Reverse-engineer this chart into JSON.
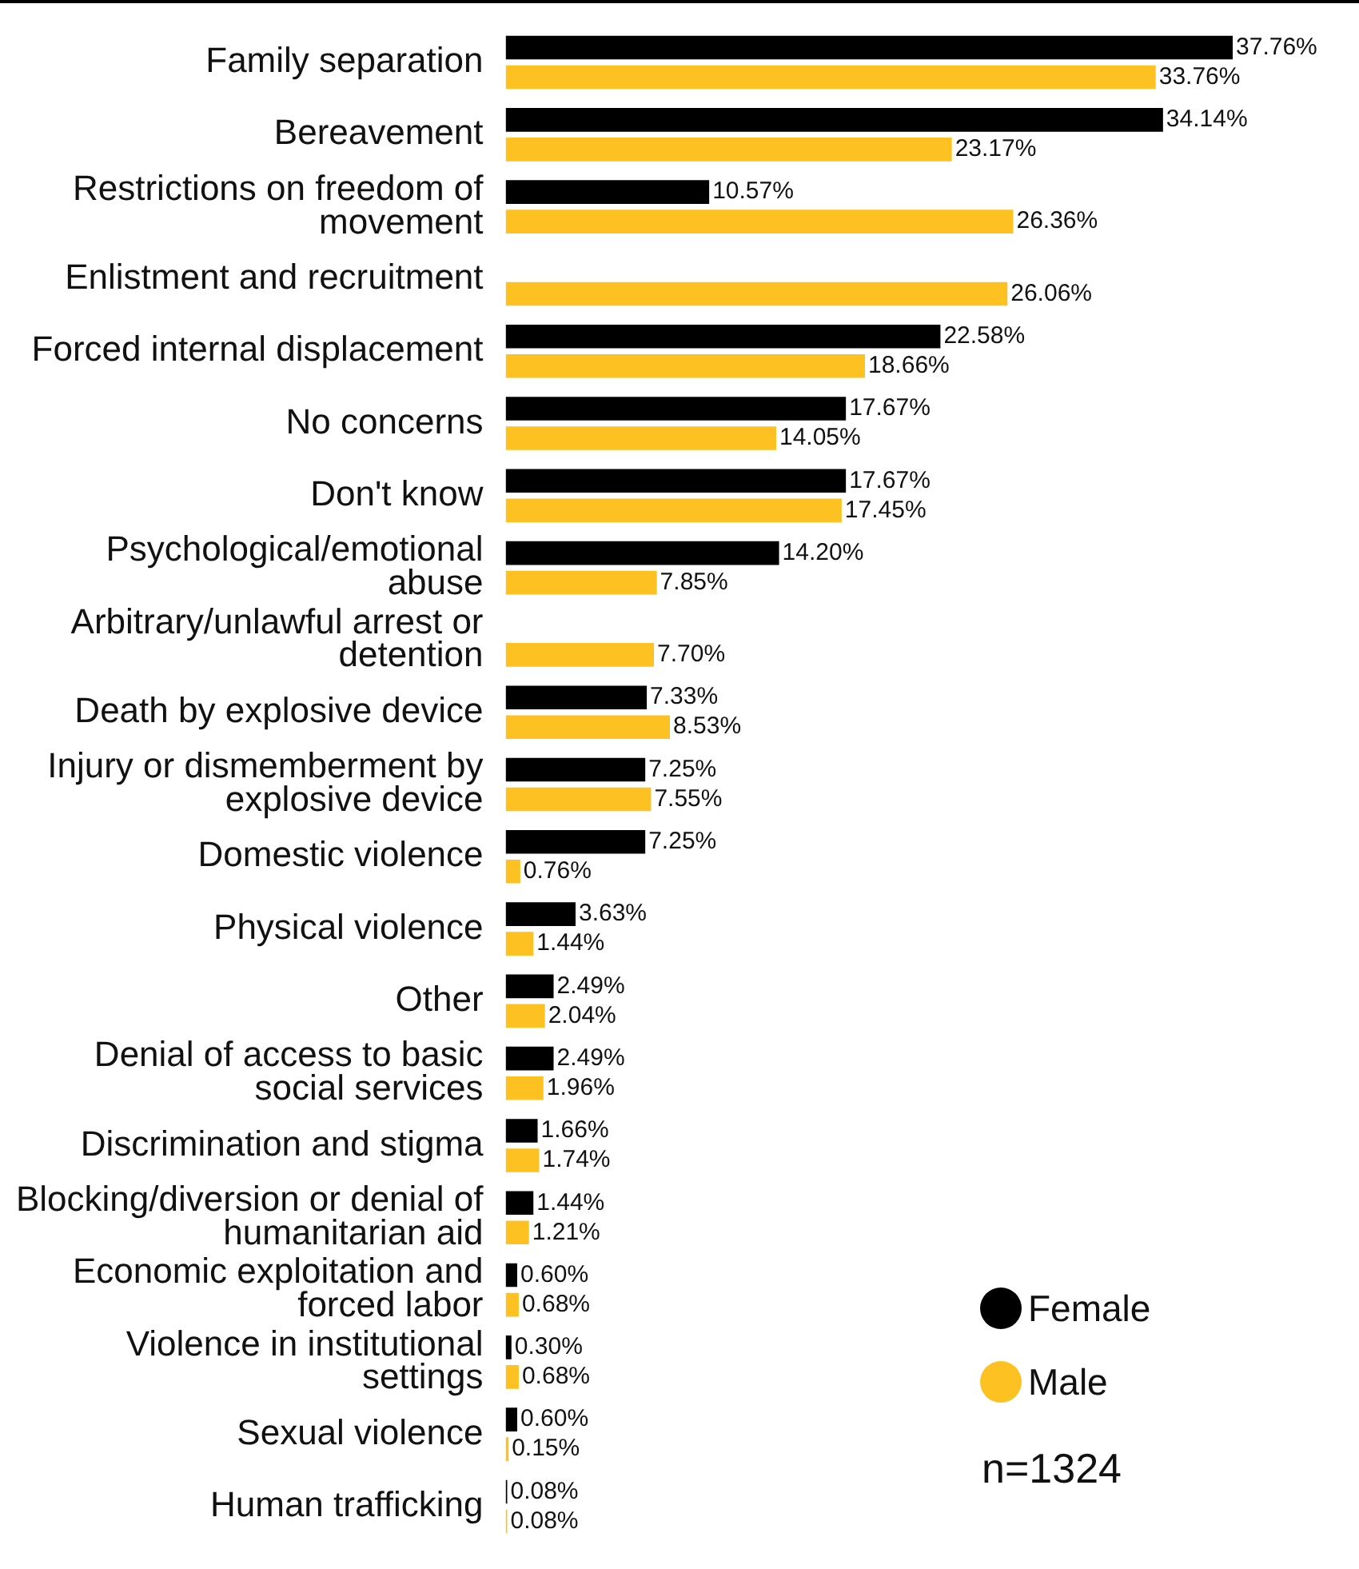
{
  "chart_data": {
    "type": "bar",
    "orientation": "horizontal",
    "legend": "bottom right",
    "tick_labels": "y",
    "categories": [
      "Family separation",
      "Bereavement",
      "Restrictions on freedom of movement",
      "Enlistment and recruitment",
      "Forced internal displacement",
      "No concerns",
      "Don't know",
      "Psychological/emotional abuse",
      "Arbitrary/unlawful arrest or detention",
      "Death by explosive device",
      "Injury or dismemberment by explosive device",
      "Domestic violence",
      "Physical violence",
      "Other",
      "Denial of access to basic social services",
      "Discrimination and stigma",
      "Blocking/diversion or denial of humanitarian aid",
      "Economic exploitation and forced labor",
      "Violence in institutional settings",
      "Sexual violence",
      "Human trafficking"
    ],
    "series": [
      {
        "name": "Female",
        "color": "#000000",
        "values": [
          37.76,
          34.14,
          10.57,
          null,
          22.58,
          17.67,
          17.67,
          14.2,
          null,
          7.33,
          7.25,
          7.25,
          3.63,
          2.49,
          2.49,
          1.66,
          1.44,
          0.6,
          0.3,
          0.6,
          0.08
        ],
        "value_labels": [
          "37.76%",
          "34.14%",
          "10.57%",
          null,
          "22.58%",
          "17.67%",
          "17.67%",
          "14.20%",
          null,
          "7.33%",
          "7.25%",
          "7.25%",
          "3.63%",
          "2.49%",
          "2.49%",
          "1.66%",
          "1.44%",
          "0.60%",
          "0.30%",
          "0.60%",
          "0.08%"
        ]
      },
      {
        "name": "Male",
        "color": "#fdc122",
        "values": [
          33.76,
          23.17,
          26.36,
          26.06,
          18.66,
          14.05,
          17.45,
          7.85,
          7.7,
          8.53,
          7.55,
          0.76,
          1.44,
          2.04,
          1.96,
          1.74,
          1.21,
          0.68,
          0.68,
          0.15,
          0.08
        ],
        "value_labels": [
          "33.76%",
          "23.17%",
          "26.36%",
          "26.06%",
          "18.66%",
          "14.05%",
          "17.45%",
          "7.85%",
          "7.70%",
          "8.53%",
          "7.55%",
          "0.76%",
          "1.44%",
          "2.04%",
          "1.96%",
          "1.74%",
          "1.21%",
          "0.68%",
          "0.68%",
          "0.15%",
          "0.08%"
        ]
      }
    ],
    "annotations": [
      "n=1324"
    ]
  }
}
